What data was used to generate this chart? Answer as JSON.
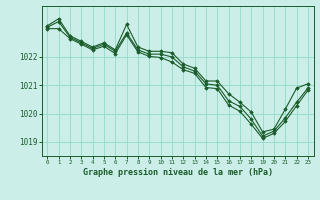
{
  "title": "Graphe pression niveau de la mer (hPa)",
  "background_color": "#cceee8",
  "grid_color": "#99ddcc",
  "line_color": "#1a5c2a",
  "xlim": [
    -0.5,
    23.5
  ],
  "ylim": [
    1018.5,
    1023.8
  ],
  "yticks": [
    1019,
    1020,
    1021,
    1022
  ],
  "xticks": [
    0,
    1,
    2,
    3,
    4,
    5,
    6,
    7,
    8,
    9,
    10,
    11,
    12,
    13,
    14,
    15,
    16,
    17,
    18,
    19,
    20,
    21,
    22,
    23
  ],
  "line1": [
    1023.1,
    1023.35,
    1022.75,
    1022.55,
    1022.35,
    1022.5,
    1022.25,
    1023.15,
    1022.35,
    1022.2,
    1022.2,
    1022.15,
    1021.75,
    1021.6,
    1021.15,
    1021.15,
    1020.7,
    1020.4,
    1020.05,
    1019.35,
    1019.45,
    1020.15,
    1020.9,
    1021.05
  ],
  "line2": [
    1023.05,
    1023.25,
    1022.7,
    1022.5,
    1022.3,
    1022.45,
    1022.2,
    1022.85,
    1022.25,
    1022.1,
    1022.1,
    1022.0,
    1021.65,
    1021.5,
    1021.05,
    1021.0,
    1020.45,
    1020.25,
    1019.8,
    1019.2,
    1019.38,
    1019.85,
    1020.4,
    1020.9
  ],
  "line3": [
    1023.0,
    1023.0,
    1022.65,
    1022.45,
    1022.25,
    1022.38,
    1022.12,
    1022.78,
    1022.18,
    1022.02,
    1021.98,
    1021.82,
    1021.55,
    1021.42,
    1020.92,
    1020.88,
    1020.3,
    1020.08,
    1019.62,
    1019.12,
    1019.3,
    1019.72,
    1020.28,
    1020.82
  ]
}
